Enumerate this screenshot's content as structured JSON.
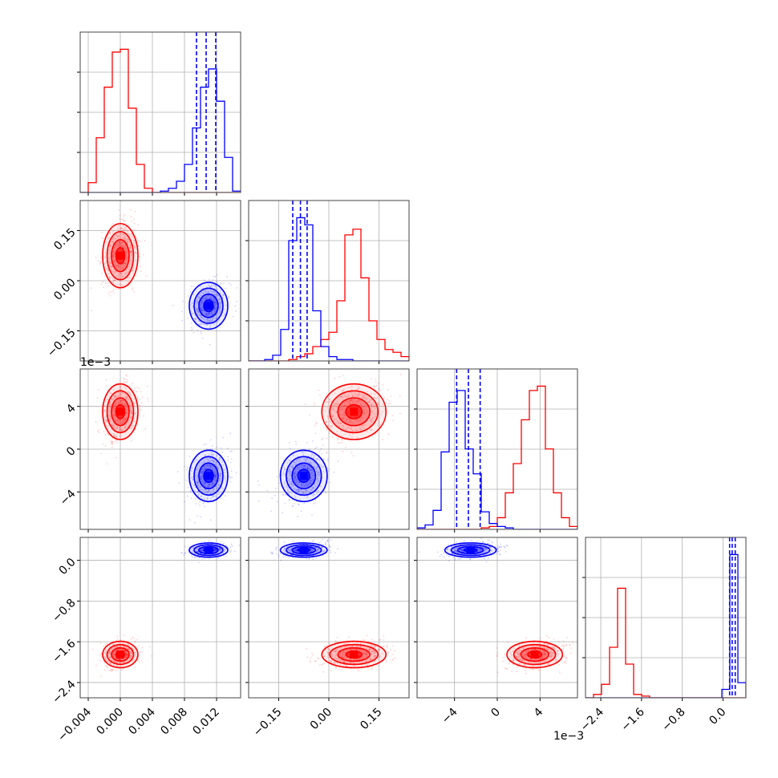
{
  "chart_data": {
    "type": "corner",
    "colors": {
      "sample_a": "#ff0000",
      "sample_b": "#0000ff",
      "grid": "#b0b0b0",
      "frame": "#444444"
    },
    "grid": true,
    "variables": [
      {
        "range": [
          -0.005,
          0.015
        ],
        "ticks": [
          -0.004,
          0.0,
          0.004,
          0.008,
          0.012
        ],
        "tick_labels": [
          "−0.004",
          "0.000",
          "0.004",
          "0.008",
          "0.012"
        ],
        "offset_label": ""
      },
      {
        "range": [
          -0.24,
          0.24
        ],
        "ticks": [
          -0.15,
          0.0,
          0.15
        ],
        "tick_labels": [
          "−0.15",
          "0.00",
          "0.15"
        ],
        "offset_label": ""
      },
      {
        "range": [
          -7.5,
          7.5
        ],
        "ticks": [
          -4,
          0,
          4
        ],
        "tick_labels": [
          "−4",
          "0",
          "4"
        ],
        "offset_label": "1e−3"
      },
      {
        "range": [
          -2.7,
          0.45
        ],
        "ticks": [
          -2.4,
          -1.6,
          -0.8,
          0.0
        ],
        "tick_labels": [
          "−2.4",
          "−1.6",
          "−0.8",
          "0.0"
        ],
        "offset_label": ""
      }
    ],
    "samples": [
      {
        "color": "#ff0000",
        "mean": [
          0.0,
          0.075,
          3.5,
          -1.85
        ],
        "std": [
          0.0011,
          0.048,
          1.3,
          0.13
        ],
        "quantile_lines": false
      },
      {
        "color": "#0000ff",
        "mean": [
          0.011,
          -0.075,
          -2.5,
          0.2
        ],
        "std": [
          0.0012,
          0.035,
          1.2,
          0.07
        ],
        "quantile_lines": true
      }
    ],
    "histograms": [
      {
        "edges": [
          -0.005,
          -0.004,
          -0.003,
          -0.002,
          -0.001,
          0.0,
          0.001,
          0.002,
          0.003,
          0.004,
          0.005,
          0.006,
          0.007,
          0.008,
          0.009,
          0.01,
          0.011,
          0.012,
          0.013,
          0.014,
          0.015
        ],
        "series": [
          {
            "color": "#ff0000",
            "counts": [
              0,
              0.07,
              0.39,
              0.75,
              1.0,
              1.02,
              0.6,
              0.2,
              0.03,
              0,
              0,
              0,
              0,
              0,
              0,
              0,
              0,
              0,
              0,
              0
            ]
          },
          {
            "color": "#0000ff",
            "counts": [
              0,
              0,
              0,
              0,
              0,
              0,
              0,
              0,
              0,
              0,
              0.01,
              0.03,
              0.08,
              0.2,
              0.46,
              0.75,
              0.88,
              0.65,
              0.25,
              0.01
            ]
          }
        ],
        "quantiles": [
          0.0095,
          0.0107,
          0.0119
        ]
      },
      {
        "edges": [
          -0.24,
          -0.216,
          -0.192,
          -0.168,
          -0.144,
          -0.12,
          -0.096,
          -0.072,
          -0.048,
          -0.024,
          0.0,
          0.024,
          0.048,
          0.072,
          0.096,
          0.12,
          0.144,
          0.168,
          0.192,
          0.216,
          0.24
        ],
        "series": [
          {
            "color": "#ff0000",
            "counts": [
              0,
              0,
              0,
              0,
              0,
              0.01,
              0.03,
              0.05,
              0.1,
              0.15,
              0.2,
              0.42,
              0.88,
              0.92,
              0.58,
              0.28,
              0.15,
              0.08,
              0.06,
              0.03
            ]
          },
          {
            "color": "#0000ff",
            "counts": [
              0,
              0,
              0.01,
              0.04,
              0.22,
              0.84,
              1.0,
              0.95,
              0.35,
              0.1,
              0.03,
              0.01,
              0.01,
              0,
              0,
              0,
              0,
              0,
              0,
              0
            ]
          }
        ],
        "quantiles": [
          -0.108,
          -0.085,
          -0.065
        ]
      },
      {
        "edges": [
          -7.5,
          -6.75,
          -6.0,
          -5.25,
          -4.5,
          -3.75,
          -3.0,
          -2.25,
          -1.5,
          -0.75,
          0.0,
          0.75,
          1.5,
          2.25,
          3.0,
          3.75,
          4.5,
          5.25,
          6.0,
          6.75,
          7.5
        ],
        "series": [
          {
            "color": "#ff0000",
            "counts": [
              0,
              0,
              0,
              0,
              0,
              0,
              0,
              0,
              0.01,
              0.02,
              0.08,
              0.25,
              0.45,
              0.75,
              0.95,
              0.98,
              0.55,
              0.25,
              0.08,
              0.02
            ]
          },
          {
            "color": "#0000ff",
            "counts": [
              0.01,
              0.03,
              0.13,
              0.53,
              0.87,
              0.95,
              0.55,
              0.38,
              0.12,
              0.04,
              0.02,
              0.01,
              0,
              0,
              0,
              0,
              0,
              0,
              0,
              0
            ]
          }
        ],
        "quantiles": [
          -3.8,
          -2.7,
          -1.6
        ]
      },
      {
        "edges": [
          -2.7,
          -2.5425,
          -2.385,
          -2.2275,
          -2.07,
          -1.9125,
          -1.755,
          -1.5975,
          -1.44,
          -1.2825,
          -1.125,
          -0.9675,
          -0.81,
          -0.6525,
          -0.495,
          -0.3375,
          -0.18,
          -0.0225,
          0.135,
          0.2925,
          0.45
        ],
        "series": [
          {
            "color": "#ff0000",
            "counts": [
              0,
              0.02,
              0.08,
              0.3,
              0.65,
              0.2,
              0.02,
              0.01,
              0,
              0,
              0,
              0,
              0,
              0,
              0,
              0,
              0,
              0,
              0,
              0
            ]
          },
          {
            "color": "#0000ff",
            "counts": [
              0,
              0,
              0,
              0,
              0,
              0,
              0,
              0,
              0,
              0,
              0,
              0,
              0,
              0,
              0,
              0,
              0,
              0.05,
              0.85,
              0.09
            ]
          }
        ],
        "quantiles": [
          0.13,
          0.18,
          0.24
        ]
      }
    ]
  }
}
